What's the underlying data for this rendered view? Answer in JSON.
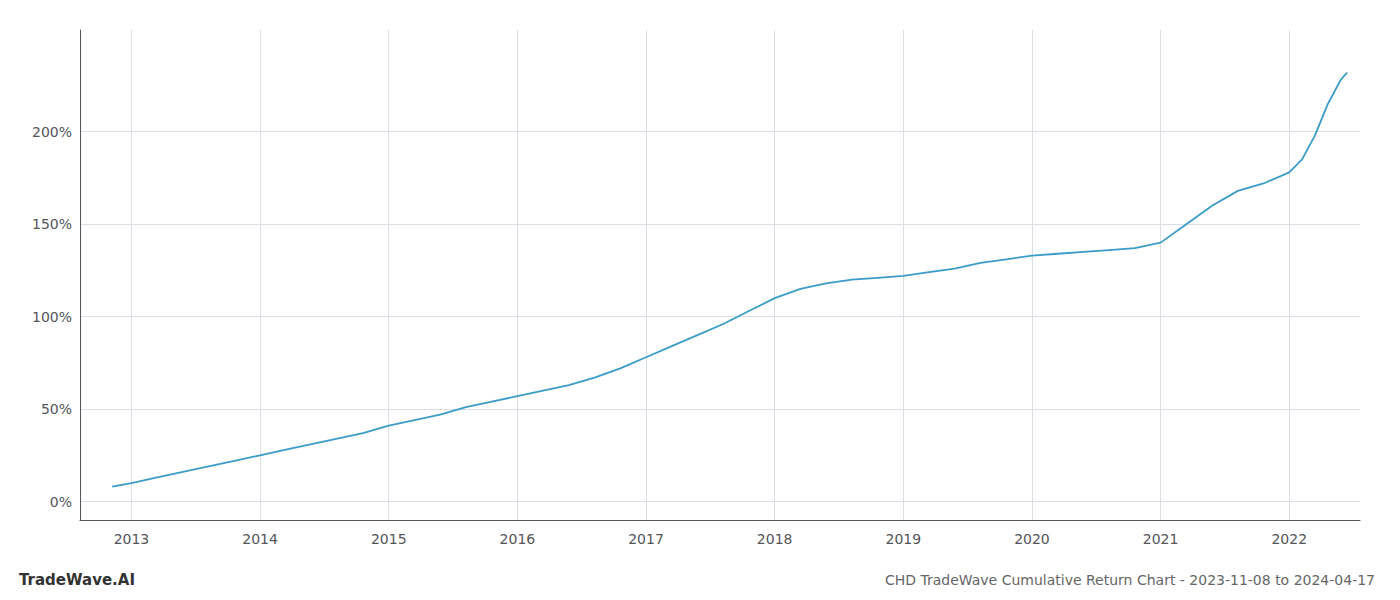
{
  "chart_data": {
    "type": "line",
    "title": "CHD TradeWave Cumulative Return Chart - 2023-11-08 to 2024-04-17",
    "annotations": [
      "TradeWave.AI"
    ],
    "color": "#3a9cc8",
    "x": [
      2012.85,
      2013.0,
      2013.2,
      2013.4,
      2013.6,
      2013.8,
      2014.0,
      2014.2,
      2014.4,
      2014.6,
      2014.8,
      2015.0,
      2015.2,
      2015.4,
      2015.6,
      2015.8,
      2016.0,
      2016.2,
      2016.4,
      2016.6,
      2016.8,
      2017.0,
      2017.2,
      2017.4,
      2017.6,
      2017.8,
      2018.0,
      2018.2,
      2018.4,
      2018.6,
      2018.8,
      2019.0,
      2019.2,
      2019.4,
      2019.6,
      2019.8,
      2020.0,
      2020.2,
      2020.4,
      2020.6,
      2020.8,
      2021.0,
      2021.2,
      2021.4,
      2021.6,
      2021.8,
      2022.0,
      2022.1,
      2022.2,
      2022.3,
      2022.4,
      2022.45
    ],
    "values": [
      8,
      10,
      13,
      16,
      19,
      22,
      25,
      28,
      31,
      34,
      37,
      41,
      44,
      47,
      51,
      54,
      57,
      60,
      63,
      67,
      72,
      78,
      84,
      90,
      96,
      103,
      110,
      115,
      118,
      120,
      121,
      122,
      124,
      126,
      129,
      131,
      133,
      134,
      135,
      136,
      137,
      140,
      150,
      160,
      168,
      172,
      178,
      185,
      198,
      215,
      228,
      232
    ],
    "xlim": [
      2012.6,
      2022.55
    ],
    "xticks": [
      2013,
      2014,
      2015,
      2016,
      2017,
      2018,
      2019,
      2020,
      2021,
      2022
    ],
    "ylim": [
      -10,
      255
    ],
    "yticks": [
      {
        "value": 0,
        "label": "0%"
      },
      {
        "value": 50,
        "label": "50%"
      },
      {
        "value": 100,
        "label": "100%"
      },
      {
        "value": 150,
        "label": "150%"
      },
      {
        "value": 200,
        "label": "200%"
      }
    ],
    "grid": true
  }
}
